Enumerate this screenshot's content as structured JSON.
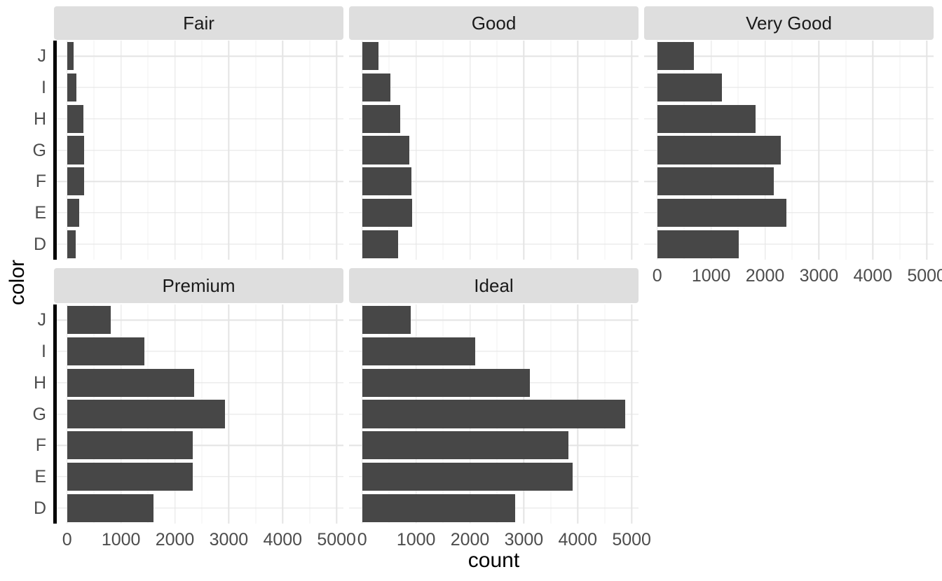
{
  "chart_data": {
    "type": "bar",
    "orientation": "horizontal",
    "title": "",
    "xlabel": "count",
    "ylabel": "color",
    "categories_top_to_bottom": [
      "J",
      "I",
      "H",
      "G",
      "F",
      "E",
      "D"
    ],
    "x_tick_labels": [
      "0",
      "1000",
      "2000",
      "3000",
      "4000",
      "5000"
    ],
    "x_tick_values": [
      0,
      1000,
      2000,
      3000,
      4000,
      5000
    ],
    "x_minor_tick_values": [
      500,
      1500,
      2500,
      3500,
      4500
    ],
    "xlim": [
      -244,
      5128
    ],
    "grid": true,
    "facets": [
      {
        "label": "Fair",
        "values": [
          119,
          175,
          303,
          314,
          312,
          224,
          163
        ]
      },
      {
        "label": "Good",
        "values": [
          307,
          522,
          702,
          871,
          909,
          933,
          662
        ]
      },
      {
        "label": "Very Good",
        "values": [
          678,
          1204,
          1824,
          2299,
          2164,
          2400,
          1513
        ]
      },
      {
        "label": "Premium",
        "values": [
          808,
          1428,
          2360,
          2924,
          2331,
          2337,
          1603
        ]
      },
      {
        "label": "Ideal",
        "values": [
          896,
          2093,
          3115,
          4884,
          3826,
          3903,
          2834
        ]
      }
    ],
    "colors": {
      "bar": "#474747",
      "strip_background": "#DEDEDE",
      "strip_text": "#1A1A1A",
      "tick_text": "#4D4D4D",
      "grid_major": "#E4E4E4",
      "grid_minor": "#F1F1F1",
      "axis_line": "#000000",
      "background": "#FFFFFF"
    }
  }
}
